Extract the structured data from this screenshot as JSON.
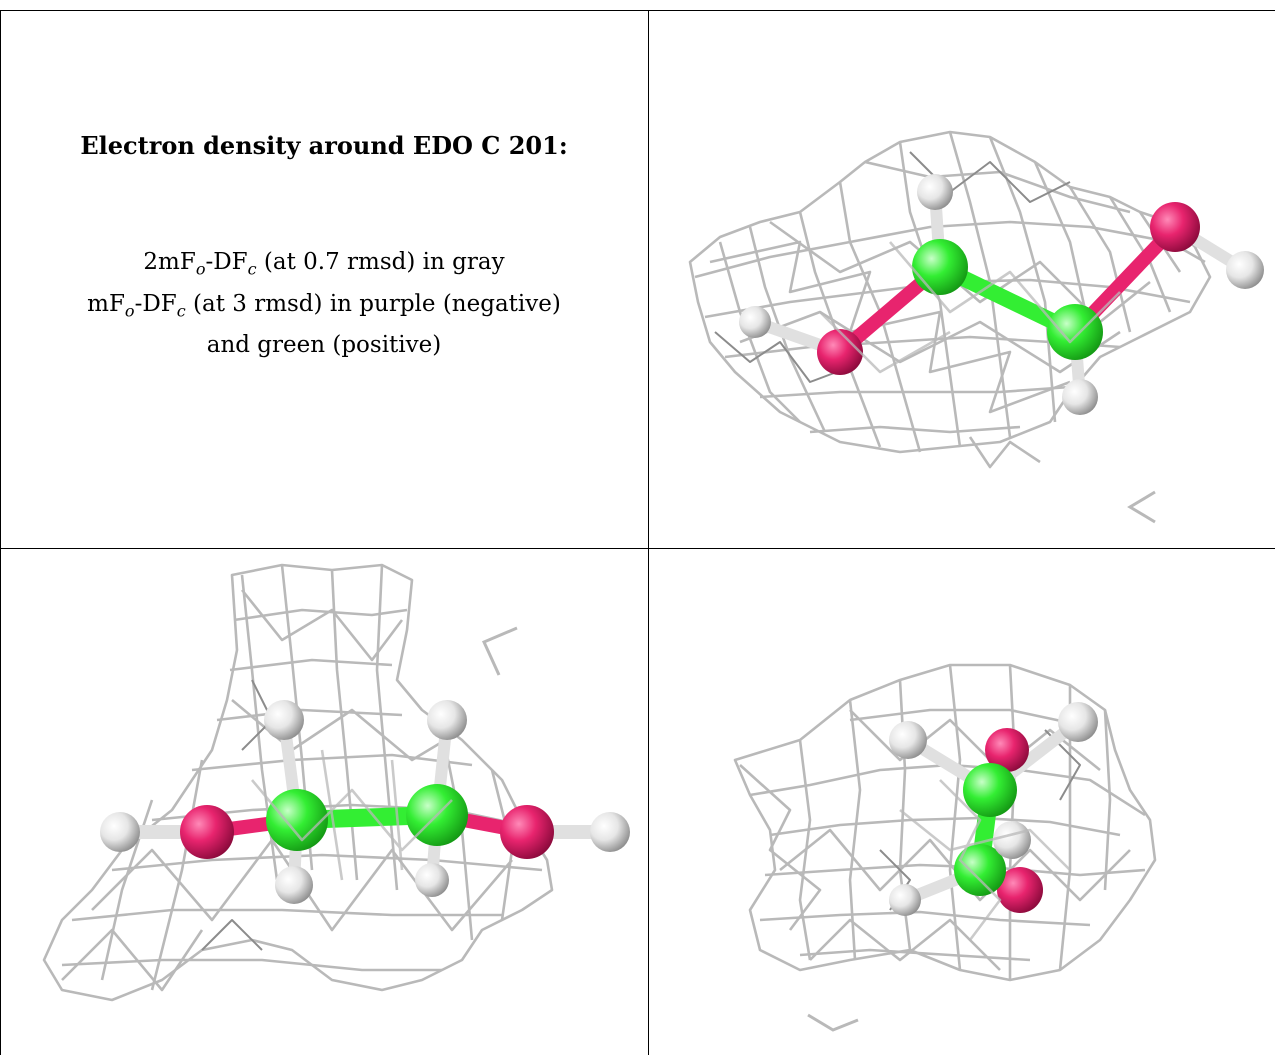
{
  "caption": {
    "title": "Electron density around EDO C 201:",
    "line1": {
      "pre": "2mF",
      "s1": "o",
      "mid": "-DF",
      "s2": "c",
      "post": " (at 0.7 rmsd) in gray"
    },
    "line2": {
      "pre": "mF",
      "s1": "o",
      "mid": "-DF",
      "s2": "c",
      "post": " (at 3 rmsd) in purple (negative)"
    },
    "line3": "and green (positive)"
  },
  "colors": {
    "mesh": "#b9b9b9",
    "carbon": "#33ee33",
    "oxygen": "#e8246e",
    "hydrogen": "#e6e6e6",
    "grid": "#000000"
  },
  "panels": [
    {
      "name": "view-top-right",
      "molecule": "EDO"
    },
    {
      "name": "view-bottom-left",
      "molecule": "EDO"
    },
    {
      "name": "view-bottom-right",
      "molecule": "EDO"
    }
  ]
}
